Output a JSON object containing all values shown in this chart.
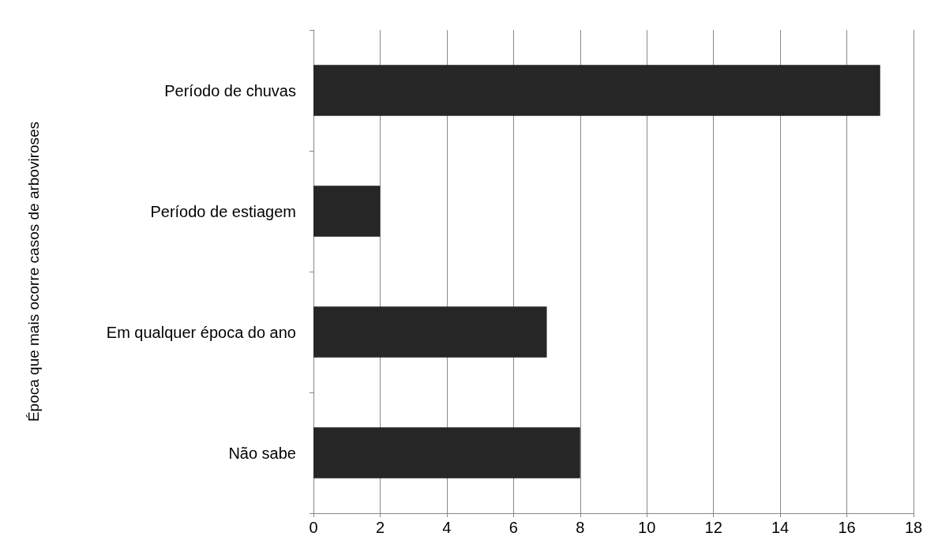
{
  "chart_data": {
    "type": "bar",
    "orientation": "horizontal",
    "ylabel": "Época que mais ocorre casos de arboviroses",
    "categories": [
      "Período de chuvas",
      "Período de estiagem",
      "Em qualquer época do ano",
      "Não sabe"
    ],
    "values": [
      17,
      2,
      7,
      8
    ],
    "color": "#262626",
    "xlim": [
      0,
      18
    ],
    "xticks": [
      0,
      2,
      4,
      6,
      8,
      10,
      12,
      14,
      16,
      18
    ],
    "grid": "x"
  }
}
